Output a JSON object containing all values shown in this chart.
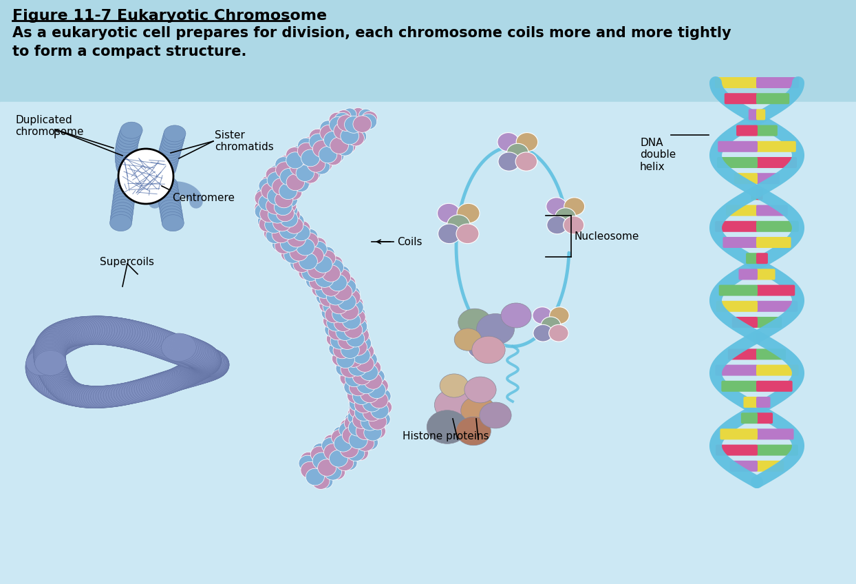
{
  "title": "Figure 11-7 Eukaryotic Chromosome",
  "subtitle_line1": "As a eukaryotic cell prepares for division, each chromosome coils more and more tightly",
  "subtitle_line2": "to form a compact structure.",
  "header_bg": "#add8e6",
  "body_bg": "#cce8f4",
  "chrom_color": "#7b9ec7",
  "chrom_dark": "#5a7aaa",
  "supercoil_color": "#8090c0",
  "supercoil_edge": "#6070a0",
  "coil_color1": "#c090b8",
  "coil_color2": "#80b0d8",
  "nuc_colors": [
    "#b090c8",
    "#c8a878",
    "#90a890",
    "#9090b8",
    "#d0a0b0",
    "#c0b080"
  ],
  "dna_color": "#60c0e0",
  "bar_colors": [
    "#e8d840",
    "#e04070",
    "#b878c8",
    "#70c070"
  ],
  "histone_colors": [
    "#c8a0b8",
    "#c89870",
    "#808898",
    "#b07860",
    "#a890b0",
    "#d0b890"
  ],
  "label_font": 11,
  "title_font": 16,
  "subtitle_font": 15
}
